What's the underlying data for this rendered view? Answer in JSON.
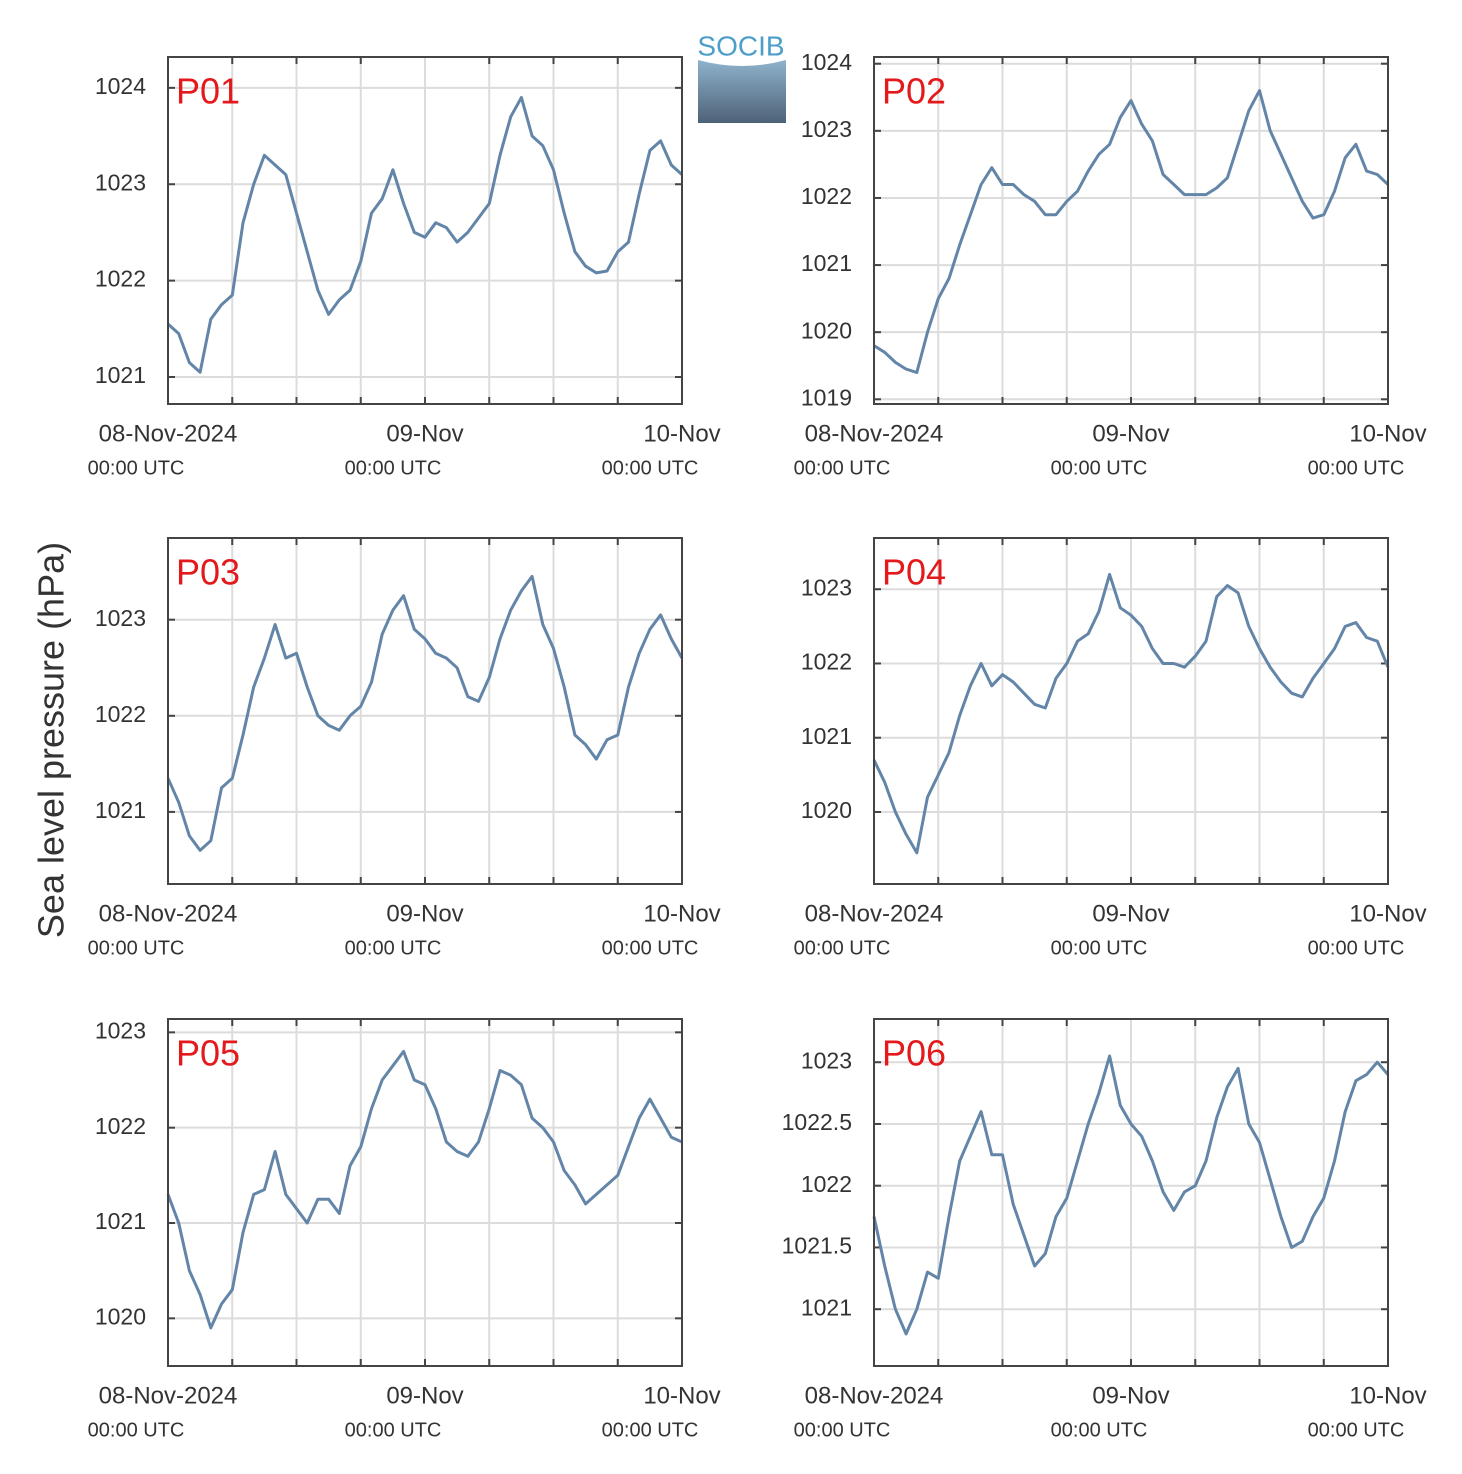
{
  "ylabel": "Sea level pressure (hPa)",
  "logo": "SOCIB",
  "chart_data": [
    {
      "type": "line",
      "title": "P01",
      "color": "#6385a8",
      "grid": true,
      "x": [
        "2024-11-08T00:00",
        "2024-11-08T01:00",
        "2024-11-08T02:00",
        "2024-11-08T03:00",
        "2024-11-08T04:00",
        "2024-11-08T05:00",
        "2024-11-08T06:00",
        "2024-11-08T07:00",
        "2024-11-08T08:00",
        "2024-11-08T09:00",
        "2024-11-08T10:00",
        "2024-11-08T11:00",
        "2024-11-08T12:00",
        "2024-11-08T13:00",
        "2024-11-08T14:00",
        "2024-11-08T15:00",
        "2024-11-08T16:00",
        "2024-11-08T17:00",
        "2024-11-08T18:00",
        "2024-11-08T19:00",
        "2024-11-08T20:00",
        "2024-11-08T21:00",
        "2024-11-08T22:00",
        "2024-11-08T23:00",
        "2024-11-09T00:00",
        "2024-11-09T01:00",
        "2024-11-09T02:00",
        "2024-11-09T03:00",
        "2024-11-09T04:00",
        "2024-11-09T05:00",
        "2024-11-09T06:00",
        "2024-11-09T07:00",
        "2024-11-09T08:00",
        "2024-11-09T09:00",
        "2024-11-09T10:00",
        "2024-11-09T11:00",
        "2024-11-09T12:00",
        "2024-11-09T13:00",
        "2024-11-09T14:00",
        "2024-11-09T15:00",
        "2024-11-09T16:00",
        "2024-11-09T17:00",
        "2024-11-09T18:00",
        "2024-11-09T19:00",
        "2024-11-09T20:00",
        "2024-11-09T21:00",
        "2024-11-09T22:00",
        "2024-11-09T23:00",
        "2024-11-10T00:00"
      ],
      "values": [
        1021.55,
        1021.45,
        1021.15,
        1021.05,
        1021.6,
        1021.75,
        1021.85,
        1022.6,
        1023.0,
        1023.3,
        1023.2,
        1023.1,
        1022.7,
        1022.3,
        1021.9,
        1021.65,
        1021.8,
        1021.9,
        1022.2,
        1022.7,
        1022.85,
        1023.15,
        1022.8,
        1022.5,
        1022.45,
        1022.6,
        1022.55,
        1022.4,
        1022.5,
        1022.65,
        1022.8,
        1023.3,
        1023.7,
        1023.9,
        1023.5,
        1023.4,
        1023.15,
        1022.7,
        1022.3,
        1022.15,
        1022.08,
        1022.1,
        1022.3,
        1022.4,
        1022.9,
        1023.35,
        1023.45,
        1023.2,
        1023.1
      ],
      "xlim": [
        "2024-11-08T00:00",
        "2024-11-10T00:00"
      ],
      "xticks": [
        {
          "value": "2024-11-08T00:00",
          "label": "08-Nov-2024"
        },
        {
          "value": "2024-11-09T00:00",
          "label": "09-Nov"
        },
        {
          "value": "2024-11-10T00:00",
          "label": "10-Nov"
        }
      ],
      "xtick_sublabel": "00:00 UTC",
      "xminorticks": [
        "2024-11-08T06:00",
        "2024-11-08T12:00",
        "2024-11-08T18:00",
        "2024-11-09T06:00",
        "2024-11-09T12:00",
        "2024-11-09T18:00"
      ],
      "ylim": [
        1020.72,
        1024.32
      ],
      "yticks": [
        1021,
        1022,
        1023,
        1024
      ]
    },
    {
      "type": "line",
      "title": "P02",
      "color": "#6385a8",
      "grid": true,
      "x": [
        "2024-11-08T00:00",
        "2024-11-08T01:00",
        "2024-11-08T02:00",
        "2024-11-08T03:00",
        "2024-11-08T04:00",
        "2024-11-08T05:00",
        "2024-11-08T06:00",
        "2024-11-08T07:00",
        "2024-11-08T08:00",
        "2024-11-08T09:00",
        "2024-11-08T10:00",
        "2024-11-08T11:00",
        "2024-11-08T12:00",
        "2024-11-08T13:00",
        "2024-11-08T14:00",
        "2024-11-08T15:00",
        "2024-11-08T16:00",
        "2024-11-08T17:00",
        "2024-11-08T18:00",
        "2024-11-08T19:00",
        "2024-11-08T20:00",
        "2024-11-08T21:00",
        "2024-11-08T22:00",
        "2024-11-08T23:00",
        "2024-11-09T00:00",
        "2024-11-09T01:00",
        "2024-11-09T02:00",
        "2024-11-09T03:00",
        "2024-11-09T04:00",
        "2024-11-09T05:00",
        "2024-11-09T06:00",
        "2024-11-09T07:00",
        "2024-11-09T08:00",
        "2024-11-09T09:00",
        "2024-11-09T10:00",
        "2024-11-09T11:00",
        "2024-11-09T12:00",
        "2024-11-09T13:00",
        "2024-11-09T14:00",
        "2024-11-09T15:00",
        "2024-11-09T16:00",
        "2024-11-09T17:00",
        "2024-11-09T18:00",
        "2024-11-09T19:00",
        "2024-11-09T20:00",
        "2024-11-09T21:00",
        "2024-11-09T22:00",
        "2024-11-09T23:00",
        "2024-11-10T00:00"
      ],
      "values": [
        1019.8,
        1019.7,
        1019.55,
        1019.45,
        1019.4,
        1020.0,
        1020.5,
        1020.8,
        1021.3,
        1021.75,
        1022.2,
        1022.45,
        1022.2,
        1022.2,
        1022.05,
        1021.95,
        1021.75,
        1021.75,
        1021.95,
        1022.1,
        1022.4,
        1022.65,
        1022.8,
        1023.2,
        1023.45,
        1023.1,
        1022.85,
        1022.35,
        1022.2,
        1022.05,
        1022.05,
        1022.05,
        1022.15,
        1022.3,
        1022.8,
        1023.3,
        1023.6,
        1023.0,
        1022.65,
        1022.3,
        1021.95,
        1021.7,
        1021.75,
        1022.1,
        1022.6,
        1022.8,
        1022.4,
        1022.35,
        1022.2
      ],
      "xlim": [
        "2024-11-08T00:00",
        "2024-11-10T00:00"
      ],
      "xticks": [
        {
          "value": "2024-11-08T00:00",
          "label": "08-Nov-2024"
        },
        {
          "value": "2024-11-09T00:00",
          "label": "09-Nov"
        },
        {
          "value": "2024-11-10T00:00",
          "label": "10-Nov"
        }
      ],
      "xtick_sublabel": "00:00 UTC",
      "xminorticks": [
        "2024-11-08T06:00",
        "2024-11-08T12:00",
        "2024-11-08T18:00",
        "2024-11-09T06:00",
        "2024-11-09T12:00",
        "2024-11-09T18:00"
      ],
      "ylim": [
        1018.93,
        1024.1
      ],
      "yticks": [
        1019,
        1020,
        1021,
        1022,
        1023,
        1024
      ]
    },
    {
      "type": "line",
      "title": "P03",
      "color": "#6385a8",
      "grid": true,
      "x": [
        "2024-11-08T00:00",
        "2024-11-08T01:00",
        "2024-11-08T02:00",
        "2024-11-08T03:00",
        "2024-11-08T04:00",
        "2024-11-08T05:00",
        "2024-11-08T06:00",
        "2024-11-08T07:00",
        "2024-11-08T08:00",
        "2024-11-08T09:00",
        "2024-11-08T10:00",
        "2024-11-08T11:00",
        "2024-11-08T12:00",
        "2024-11-08T13:00",
        "2024-11-08T14:00",
        "2024-11-08T15:00",
        "2024-11-08T16:00",
        "2024-11-08T17:00",
        "2024-11-08T18:00",
        "2024-11-08T19:00",
        "2024-11-08T20:00",
        "2024-11-08T21:00",
        "2024-11-08T22:00",
        "2024-11-08T23:00",
        "2024-11-09T00:00",
        "2024-11-09T01:00",
        "2024-11-09T02:00",
        "2024-11-09T03:00",
        "2024-11-09T04:00",
        "2024-11-09T05:00",
        "2024-11-09T06:00",
        "2024-11-09T07:00",
        "2024-11-09T08:00",
        "2024-11-09T09:00",
        "2024-11-09T10:00",
        "2024-11-09T11:00",
        "2024-11-09T12:00",
        "2024-11-09T13:00",
        "2024-11-09T14:00",
        "2024-11-09T15:00",
        "2024-11-09T16:00",
        "2024-11-09T17:00",
        "2024-11-09T18:00",
        "2024-11-09T19:00",
        "2024-11-09T20:00",
        "2024-11-09T21:00",
        "2024-11-09T22:00",
        "2024-11-09T23:00",
        "2024-11-10T00:00"
      ],
      "values": [
        1021.35,
        1021.1,
        1020.75,
        1020.6,
        1020.7,
        1021.25,
        1021.35,
        1021.8,
        1022.3,
        1022.6,
        1022.95,
        1022.6,
        1022.65,
        1022.3,
        1022.0,
        1021.9,
        1021.85,
        1022.0,
        1022.1,
        1022.35,
        1022.85,
        1023.1,
        1023.25,
        1022.9,
        1022.8,
        1022.65,
        1022.6,
        1022.5,
        1022.2,
        1022.15,
        1022.4,
        1022.8,
        1023.1,
        1023.3,
        1023.45,
        1022.95,
        1022.7,
        1022.3,
        1021.8,
        1021.7,
        1021.55,
        1021.75,
        1021.8,
        1022.3,
        1022.65,
        1022.9,
        1023.05,
        1022.8,
        1022.6
      ],
      "xlim": [
        "2024-11-08T00:00",
        "2024-11-10T00:00"
      ],
      "xticks": [
        {
          "value": "2024-11-08T00:00",
          "label": "08-Nov-2024"
        },
        {
          "value": "2024-11-09T00:00",
          "label": "09-Nov"
        },
        {
          "value": "2024-11-10T00:00",
          "label": "10-Nov"
        }
      ],
      "xtick_sublabel": "00:00 UTC",
      "xminorticks": [
        "2024-11-08T06:00",
        "2024-11-08T12:00",
        "2024-11-08T18:00",
        "2024-11-09T06:00",
        "2024-11-09T12:00",
        "2024-11-09T18:00"
      ],
      "ylim": [
        1020.25,
        1023.85
      ],
      "yticks": [
        1021,
        1022,
        1023
      ]
    },
    {
      "type": "line",
      "title": "P04",
      "color": "#6385a8",
      "grid": true,
      "x": [
        "2024-11-08T00:00",
        "2024-11-08T01:00",
        "2024-11-08T02:00",
        "2024-11-08T03:00",
        "2024-11-08T04:00",
        "2024-11-08T05:00",
        "2024-11-08T06:00",
        "2024-11-08T07:00",
        "2024-11-08T08:00",
        "2024-11-08T09:00",
        "2024-11-08T10:00",
        "2024-11-08T11:00",
        "2024-11-08T12:00",
        "2024-11-08T13:00",
        "2024-11-08T14:00",
        "2024-11-08T15:00",
        "2024-11-08T16:00",
        "2024-11-08T17:00",
        "2024-11-08T18:00",
        "2024-11-08T19:00",
        "2024-11-08T20:00",
        "2024-11-08T21:00",
        "2024-11-08T22:00",
        "2024-11-08T23:00",
        "2024-11-09T00:00",
        "2024-11-09T01:00",
        "2024-11-09T02:00",
        "2024-11-09T03:00",
        "2024-11-09T04:00",
        "2024-11-09T05:00",
        "2024-11-09T06:00",
        "2024-11-09T07:00",
        "2024-11-09T08:00",
        "2024-11-09T09:00",
        "2024-11-09T10:00",
        "2024-11-09T11:00",
        "2024-11-09T12:00",
        "2024-11-09T13:00",
        "2024-11-09T14:00",
        "2024-11-09T15:00",
        "2024-11-09T16:00",
        "2024-11-09T17:00",
        "2024-11-09T18:00",
        "2024-11-09T19:00",
        "2024-11-09T20:00",
        "2024-11-09T21:00",
        "2024-11-09T22:00",
        "2024-11-09T23:00",
        "2024-11-10T00:00"
      ],
      "values": [
        1020.7,
        1020.4,
        1020.0,
        1019.7,
        1019.45,
        1020.2,
        1020.5,
        1020.8,
        1021.3,
        1021.7,
        1022.0,
        1021.7,
        1021.85,
        1021.75,
        1021.6,
        1021.45,
        1021.4,
        1021.8,
        1022.0,
        1022.3,
        1022.4,
        1022.7,
        1023.2,
        1022.75,
        1022.65,
        1022.5,
        1022.2,
        1022.0,
        1022.0,
        1021.95,
        1022.1,
        1022.3,
        1022.9,
        1023.05,
        1022.95,
        1022.5,
        1022.2,
        1021.95,
        1021.75,
        1021.6,
        1021.55,
        1021.8,
        1022.0,
        1022.2,
        1022.5,
        1022.55,
        1022.35,
        1022.3,
        1021.95
      ],
      "xlim": [
        "2024-11-08T00:00",
        "2024-11-10T00:00"
      ],
      "xticks": [
        {
          "value": "2024-11-08T00:00",
          "label": "08-Nov-2024"
        },
        {
          "value": "2024-11-09T00:00",
          "label": "09-Nov"
        },
        {
          "value": "2024-11-10T00:00",
          "label": "10-Nov"
        }
      ],
      "xtick_sublabel": "00:00 UTC",
      "xminorticks": [
        "2024-11-08T06:00",
        "2024-11-08T12:00",
        "2024-11-08T18:00",
        "2024-11-09T06:00",
        "2024-11-09T12:00",
        "2024-11-09T18:00"
      ],
      "ylim": [
        1019.03,
        1023.69
      ],
      "yticks": [
        1020,
        1021,
        1022,
        1023
      ]
    },
    {
      "type": "line",
      "title": "P05",
      "color": "#6385a8",
      "grid": true,
      "x": [
        "2024-11-08T00:00",
        "2024-11-08T01:00",
        "2024-11-08T02:00",
        "2024-11-08T03:00",
        "2024-11-08T04:00",
        "2024-11-08T05:00",
        "2024-11-08T06:00",
        "2024-11-08T07:00",
        "2024-11-08T08:00",
        "2024-11-08T09:00",
        "2024-11-08T10:00",
        "2024-11-08T11:00",
        "2024-11-08T12:00",
        "2024-11-08T13:00",
        "2024-11-08T14:00",
        "2024-11-08T15:00",
        "2024-11-08T16:00",
        "2024-11-08T17:00",
        "2024-11-08T18:00",
        "2024-11-08T19:00",
        "2024-11-08T20:00",
        "2024-11-08T21:00",
        "2024-11-08T22:00",
        "2024-11-08T23:00",
        "2024-11-09T00:00",
        "2024-11-09T01:00",
        "2024-11-09T02:00",
        "2024-11-09T03:00",
        "2024-11-09T04:00",
        "2024-11-09T05:00",
        "2024-11-09T06:00",
        "2024-11-09T07:00",
        "2024-11-09T08:00",
        "2024-11-09T09:00",
        "2024-11-09T10:00",
        "2024-11-09T11:00",
        "2024-11-09T12:00",
        "2024-11-09T13:00",
        "2024-11-09T14:00",
        "2024-11-09T15:00",
        "2024-11-09T16:00",
        "2024-11-09T17:00",
        "2024-11-09T18:00",
        "2024-11-09T19:00",
        "2024-11-09T20:00",
        "2024-11-09T21:00",
        "2024-11-09T22:00",
        "2024-11-09T23:00",
        "2024-11-10T00:00"
      ],
      "values": [
        1021.3,
        1021.0,
        1020.5,
        1020.25,
        1019.9,
        1020.15,
        1020.3,
        1020.9,
        1021.3,
        1021.35,
        1021.75,
        1021.3,
        1021.15,
        1021.0,
        1021.25,
        1021.25,
        1021.1,
        1021.6,
        1021.8,
        1022.2,
        1022.5,
        1022.65,
        1022.8,
        1022.5,
        1022.45,
        1022.2,
        1021.85,
        1021.75,
        1021.7,
        1021.85,
        1022.2,
        1022.6,
        1022.55,
        1022.45,
        1022.1,
        1022.0,
        1021.85,
        1021.55,
        1021.4,
        1021.2,
        1021.3,
        1021.4,
        1021.5,
        1021.8,
        1022.1,
        1022.3,
        1022.1,
        1021.9,
        1021.85
      ],
      "xlim": [
        "2024-11-08T00:00",
        "2024-11-10T00:00"
      ],
      "xticks": [
        {
          "value": "2024-11-08T00:00",
          "label": "08-Nov-2024"
        },
        {
          "value": "2024-11-09T00:00",
          "label": "09-Nov"
        },
        {
          "value": "2024-11-10T00:00",
          "label": "10-Nov"
        }
      ],
      "xtick_sublabel": "00:00 UTC",
      "xminorticks": [
        "2024-11-08T06:00",
        "2024-11-08T12:00",
        "2024-11-08T18:00",
        "2024-11-09T06:00",
        "2024-11-09T12:00",
        "2024-11-09T18:00"
      ],
      "ylim": [
        1019.5,
        1023.14
      ],
      "yticks": [
        1020,
        1021,
        1022,
        1023
      ]
    },
    {
      "type": "line",
      "title": "P06",
      "color": "#6385a8",
      "grid": true,
      "x": [
        "2024-11-08T00:00",
        "2024-11-08T01:00",
        "2024-11-08T02:00",
        "2024-11-08T03:00",
        "2024-11-08T04:00",
        "2024-11-08T05:00",
        "2024-11-08T06:00",
        "2024-11-08T07:00",
        "2024-11-08T08:00",
        "2024-11-08T09:00",
        "2024-11-08T10:00",
        "2024-11-08T11:00",
        "2024-11-08T12:00",
        "2024-11-08T13:00",
        "2024-11-08T14:00",
        "2024-11-08T15:00",
        "2024-11-08T16:00",
        "2024-11-08T17:00",
        "2024-11-08T18:00",
        "2024-11-08T19:00",
        "2024-11-08T20:00",
        "2024-11-08T21:00",
        "2024-11-08T22:00",
        "2024-11-08T23:00",
        "2024-11-09T00:00",
        "2024-11-09T01:00",
        "2024-11-09T02:00",
        "2024-11-09T03:00",
        "2024-11-09T04:00",
        "2024-11-09T05:00",
        "2024-11-09T06:00",
        "2024-11-09T07:00",
        "2024-11-09T08:00",
        "2024-11-09T09:00",
        "2024-11-09T10:00",
        "2024-11-09T11:00",
        "2024-11-09T12:00",
        "2024-11-09T13:00",
        "2024-11-09T14:00",
        "2024-11-09T15:00",
        "2024-11-09T16:00",
        "2024-11-09T17:00",
        "2024-11-09T18:00",
        "2024-11-09T19:00",
        "2024-11-09T20:00",
        "2024-11-09T21:00",
        "2024-11-09T22:00",
        "2024-11-09T23:00",
        "2024-11-10T00:00"
      ],
      "values": [
        1021.75,
        1021.35,
        1021.0,
        1020.8,
        1021.0,
        1021.3,
        1021.25,
        1021.75,
        1022.2,
        1022.4,
        1022.6,
        1022.25,
        1022.25,
        1021.85,
        1021.6,
        1021.35,
        1021.45,
        1021.75,
        1021.9,
        1022.2,
        1022.5,
        1022.75,
        1023.05,
        1022.65,
        1022.5,
        1022.4,
        1022.2,
        1021.95,
        1021.8,
        1021.95,
        1022.0,
        1022.2,
        1022.55,
        1022.8,
        1022.95,
        1022.5,
        1022.35,
        1022.05,
        1021.75,
        1021.5,
        1021.55,
        1021.75,
        1021.9,
        1022.2,
        1022.6,
        1022.85,
        1022.9,
        1023.0,
        1022.9
      ],
      "xlim": [
        "2024-11-08T00:00",
        "2024-11-10T00:00"
      ],
      "xticks": [
        {
          "value": "2024-11-08T00:00",
          "label": "08-Nov-2024"
        },
        {
          "value": "2024-11-09T00:00",
          "label": "09-Nov"
        },
        {
          "value": "2024-11-10T00:00",
          "label": "10-Nov"
        }
      ],
      "xtick_sublabel": "00:00 UTC",
      "xminorticks": [
        "2024-11-08T06:00",
        "2024-11-08T12:00",
        "2024-11-08T18:00",
        "2024-11-09T06:00",
        "2024-11-09T12:00",
        "2024-11-09T18:00"
      ],
      "ylim": [
        1020.54,
        1023.35
      ],
      "yticks": [
        1021,
        1021.5,
        1022,
        1022.5,
        1023
      ]
    }
  ]
}
